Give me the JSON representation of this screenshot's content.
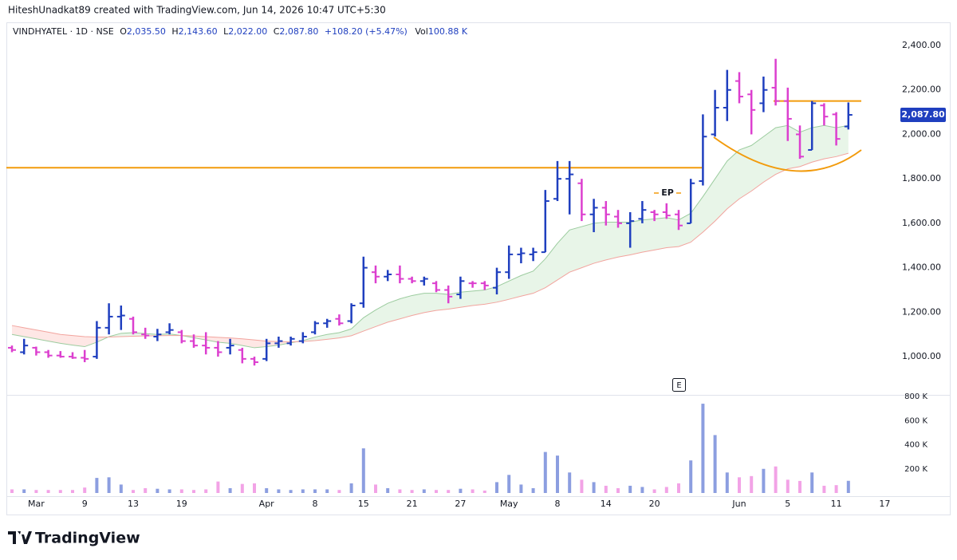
{
  "header": "HiteshUnadkat89 created with TradingView.com, Jun 14, 2026 10:47 UTC+5:30",
  "legend": {
    "symbol": "VINDHYATEL · 1D · NSE",
    "items": [
      {
        "key": "O",
        "value": "2,035.50"
      },
      {
        "key": "H",
        "value": "2,143.60"
      },
      {
        "key": "L",
        "value": "2,022.00"
      },
      {
        "key": "C",
        "value": "2,087.80"
      }
    ],
    "change": "+108.20 (+5.47%)",
    "volume_key": "Vol",
    "volume_value": "100.88 K"
  },
  "footer": {
    "brand": "TradingView"
  },
  "chart_data": {
    "type": "ohlc",
    "categories": [
      null,
      null,
      "Mar",
      null,
      null,
      null,
      "9",
      null,
      null,
      null,
      "13",
      null,
      null,
      null,
      "19",
      null,
      null,
      null,
      null,
      null,
      null,
      "Apr",
      null,
      null,
      null,
      "8",
      null,
      null,
      null,
      "15",
      null,
      null,
      null,
      "21",
      null,
      null,
      null,
      "27",
      null,
      null,
      null,
      "May",
      null,
      null,
      null,
      "8",
      null,
      null,
      null,
      "14",
      null,
      null,
      null,
      "20",
      null,
      null,
      null,
      null,
      null,
      null,
      "Jun",
      null,
      null,
      null,
      "5",
      null,
      null,
      null,
      "11",
      null,
      null,
      null,
      "17"
    ],
    "open": [
      1040,
      1020,
      1040,
      1020,
      1005,
      1000,
      995,
      1000,
      1130,
      1180,
      1170,
      1100,
      1090,
      1110,
      1110,
      1070,
      1050,
      1040,
      1040,
      1030,
      990,
      990,
      1060,
      1060,
      1070,
      1110,
      1150,
      1170,
      1160,
      1240,
      1380,
      1360,
      1370,
      1350,
      1340,
      1330,
      1300,
      1280,
      1330,
      1330,
      1310,
      1380,
      1460,
      1460,
      1470,
      1710,
      1800,
      1780,
      1640,
      1670,
      1630,
      1600,
      1620,
      1650,
      1650,
      1640,
      1600,
      1790,
      2000,
      2120,
      2240,
      2180,
      2140,
      2210,
      2150,
      2000,
      1930,
      2130,
      2090,
      2035.5,
      null,
      null,
      null
    ],
    "high": [
      1050,
      1080,
      1045,
      1030,
      1025,
      1020,
      1030,
      1160,
      1240,
      1230,
      1180,
      1130,
      1125,
      1150,
      1120,
      1100,
      1110,
      1070,
      1080,
      1040,
      1000,
      1080,
      1090,
      1090,
      1110,
      1160,
      1170,
      1190,
      1240,
      1450,
      1410,
      1390,
      1410,
      1360,
      1360,
      1340,
      1320,
      1360,
      1340,
      1340,
      1400,
      1500,
      1490,
      1490,
      1750,
      1880,
      1880,
      1800,
      1710,
      1700,
      1660,
      1650,
      1700,
      1660,
      1690,
      1660,
      1800,
      2090,
      2200,
      2290,
      2280,
      2200,
      2260,
      2340,
      2210,
      2040,
      2150,
      2140,
      2100,
      2143.6,
      null,
      null,
      null
    ],
    "low": [
      1020,
      1010,
      1005,
      995,
      995,
      990,
      975,
      990,
      1100,
      1120,
      1100,
      1080,
      1070,
      1100,
      1060,
      1040,
      1010,
      1000,
      1010,
      970,
      960,
      980,
      1040,
      1050,
      1060,
      1100,
      1130,
      1140,
      1150,
      1220,
      1330,
      1340,
      1330,
      1330,
      1320,
      1290,
      1240,
      1260,
      1310,
      1300,
      1280,
      1350,
      1420,
      1430,
      1470,
      1700,
      1640,
      1610,
      1560,
      1590,
      1580,
      1490,
      1600,
      1610,
      1620,
      1570,
      1600,
      1770,
      1990,
      2060,
      2140,
      2000,
      2100,
      2130,
      1970,
      1890,
      1930,
      2040,
      1950,
      2022,
      null,
      null,
      null
    ],
    "close": [
      1030,
      1050,
      1020,
      1005,
      1000,
      995,
      990,
      1130,
      1180,
      1185,
      1110,
      1095,
      1100,
      1120,
      1070,
      1050,
      1040,
      1020,
      1050,
      990,
      975,
      1060,
      1070,
      1080,
      1090,
      1150,
      1160,
      1150,
      1230,
      1400,
      1360,
      1370,
      1350,
      1340,
      1350,
      1300,
      1270,
      1340,
      1330,
      1320,
      1380,
      1460,
      1465,
      1470,
      1700,
      1800,
      1820,
      1640,
      1670,
      1640,
      1600,
      1610,
      1660,
      1640,
      1635,
      1590,
      1780,
      1990,
      2120,
      2200,
      2170,
      2110,
      2200,
      2150,
      2070,
      1900,
      2140,
      2080,
      1979.6,
      2087.8,
      null,
      null,
      null
    ],
    "volume": [
      30000,
      30000,
      25000,
      25000,
      25000,
      25000,
      45000,
      125000,
      130000,
      70000,
      25000,
      40000,
      35000,
      30000,
      30000,
      25000,
      30000,
      95000,
      40000,
      75000,
      80000,
      40000,
      30000,
      25000,
      30000,
      30000,
      30000,
      25000,
      80000,
      370000,
      70000,
      40000,
      30000,
      25000,
      30000,
      25000,
      25000,
      35000,
      30000,
      20000,
      90000,
      150000,
      70000,
      40000,
      340000,
      310000,
      170000,
      110000,
      90000,
      60000,
      40000,
      60000,
      50000,
      30000,
      50000,
      80000,
      270000,
      740000,
      480000,
      170000,
      130000,
      140000,
      200000,
      220000,
      110000,
      100000,
      170000,
      60000,
      65000,
      100880,
      null,
      null,
      null
    ],
    "ma_fast": {
      "color": "#9ccc9f",
      "values": [
        1100,
        1090,
        1080,
        1070,
        1060,
        1052,
        1045,
        1065,
        1090,
        1105,
        1108,
        1104,
        1100,
        1102,
        1095,
        1085,
        1075,
        1065,
        1060,
        1050,
        1040,
        1045,
        1052,
        1062,
        1072,
        1088,
        1100,
        1108,
        1125,
        1175,
        1210,
        1240,
        1260,
        1275,
        1285,
        1285,
        1280,
        1290,
        1295,
        1300,
        1315,
        1340,
        1365,
        1385,
        1440,
        1510,
        1570,
        1585,
        1600,
        1605,
        1605,
        1605,
        1615,
        1620,
        1625,
        1615,
        1645,
        1720,
        1800,
        1880,
        1930,
        1950,
        1990,
        2030,
        2040,
        2010,
        2030,
        2040,
        2030,
        2040,
        null,
        null,
        null
      ]
    },
    "ma_slow": {
      "color": "#f2a49e",
      "values": [
        1140,
        1130,
        1120,
        1110,
        1100,
        1095,
        1090,
        1088,
        1088,
        1090,
        1092,
        1093,
        1094,
        1095,
        1095,
        1093,
        1090,
        1087,
        1084,
        1080,
        1075,
        1070,
        1068,
        1066,
        1068,
        1072,
        1078,
        1084,
        1094,
        1115,
        1135,
        1155,
        1170,
        1185,
        1198,
        1208,
        1214,
        1222,
        1230,
        1236,
        1245,
        1258,
        1272,
        1285,
        1310,
        1345,
        1380,
        1400,
        1420,
        1435,
        1448,
        1458,
        1470,
        1480,
        1490,
        1495,
        1515,
        1560,
        1610,
        1665,
        1710,
        1745,
        1785,
        1820,
        1845,
        1855,
        1875,
        1890,
        1900,
        1915,
        null,
        null,
        null
      ]
    },
    "up_color": "#1f3fbf",
    "down_color": "#dc3fcf",
    "volume_up_color": "#8c9ee0",
    "volume_down_color": "#f2a3e6",
    "fill_up_color": "rgba(76,175,80,0.13)",
    "fill_down_color": "rgba(244,67,54,0.13)",
    "ylim": [
      828,
      2461
    ],
    "yticks": [
      {
        "value": 1000,
        "label": "1,000.00"
      },
      {
        "value": 1200,
        "label": "1,200.00"
      },
      {
        "value": 1400,
        "label": "1,400.00"
      },
      {
        "value": 1600,
        "label": "1,600.00"
      },
      {
        "value": 1800,
        "label": "1,800.00"
      },
      {
        "value": 2000,
        "label": "2,000.00"
      },
      {
        "value": 2200,
        "label": "2,200.00"
      },
      {
        "value": 2400,
        "label": "2,400.00"
      }
    ],
    "y2lim": [
      0,
      800000
    ],
    "y2ticks": [
      {
        "value": 200000,
        "label": "200 K"
      },
      {
        "value": 400000,
        "label": "400 K"
      },
      {
        "value": 600000,
        "label": "600 K"
      },
      {
        "value": 800000,
        "label": "800 K"
      }
    ],
    "grid": false,
    "last_price_label": "2,087.80",
    "levels": [
      {
        "value": 1850,
        "color": "#f29b0c"
      },
      {
        "value": 2150,
        "color": "#f29b0c"
      }
    ],
    "annotation": "EP",
    "event_marker": "E"
  }
}
